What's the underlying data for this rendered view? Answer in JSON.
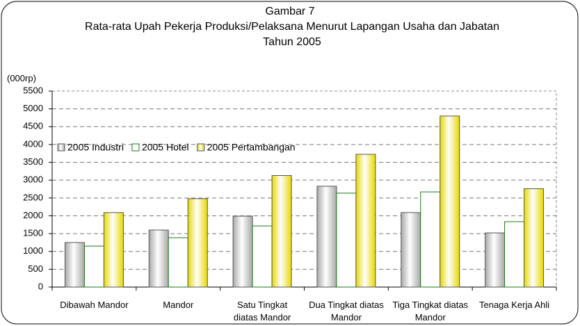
{
  "chart_data": {
    "type": "bar",
    "title": "Gambar 7",
    "subtitle": "Rata-rata Upah Pekerja  Produksi/Pelaksana Menurut Lapangan Usaha dan Jabatan Tahun 2005",
    "y_label": "(000rp)",
    "categories": [
      "Dibawah Mandor",
      "Mandor",
      "Satu Tingkat diatas Mandor",
      "Dua Tingkat diatas Mandor",
      "Tiga Tingkat diatas Mandor",
      "Tenaga Kerja Ahli"
    ],
    "series": [
      {
        "name": "2005 Industri",
        "color": "#a8a8a8",
        "outline": "#555555",
        "values": [
          1250,
          1600,
          1990,
          2830,
          2090,
          1520
        ]
      },
      {
        "name": "2005 Hotel",
        "color": "#ffffff",
        "outline": "#1a7a1a",
        "values": [
          1150,
          1385,
          1715,
          2635,
          2670,
          1835
        ]
      },
      {
        "name": "2005 Pertambangan",
        "color": "#e6d800",
        "outline": "#555555",
        "values": [
          2090,
          2480,
          3130,
          3725,
          4800,
          2760
        ]
      }
    ],
    "ylim": [
      0,
      5500
    ],
    "yticks": [
      0,
      500,
      1000,
      1500,
      2000,
      2500,
      3000,
      3500,
      4000,
      4500,
      5000,
      5500
    ],
    "grid": true,
    "legend": "center-left"
  }
}
